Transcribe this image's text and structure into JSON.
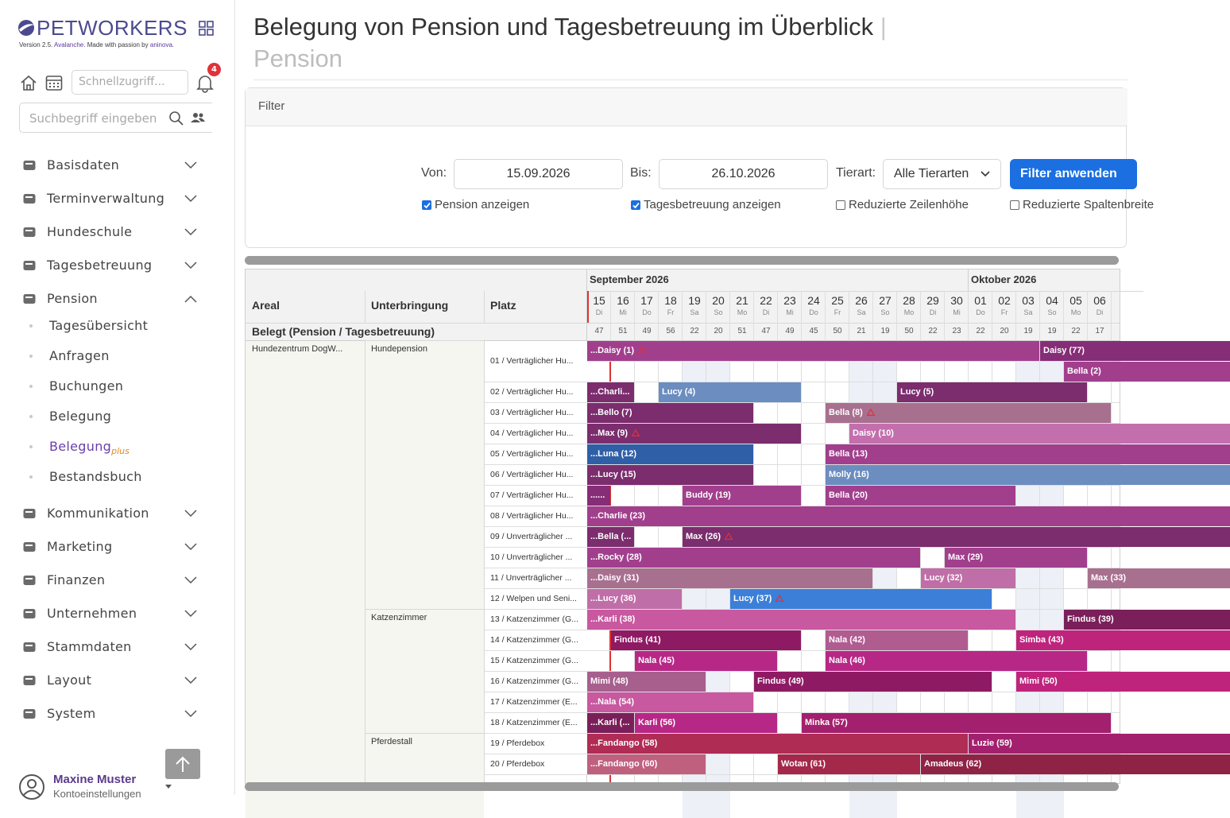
{
  "sidebar": {
    "logo": "PETWORKERS",
    "version": {
      "prefix": "Version 2.5.",
      "release": "Avalanche.",
      "made": "Made with passion by",
      "company": "aninova."
    },
    "quick_access_placeholder": "Schnellzugriff...",
    "notifications": 4,
    "search_placeholder": "Suchbegriff eingeben",
    "menu": [
      {
        "label": "Basisdaten"
      },
      {
        "label": "Terminverwaltung"
      },
      {
        "label": "Hundeschule"
      },
      {
        "label": "Tagesbetreuung"
      },
      {
        "label": "Pension",
        "expanded": true,
        "items": [
          {
            "label": "Tagesübersicht"
          },
          {
            "label": "Anfragen"
          },
          {
            "label": "Buchungen"
          },
          {
            "label": "Belegung"
          },
          {
            "label": "Belegung",
            "suffix": "plus",
            "active": true
          },
          {
            "label": "Bestandsbuch"
          }
        ]
      },
      {
        "label": "Kommunikation"
      },
      {
        "label": "Marketing"
      },
      {
        "label": "Finanzen"
      },
      {
        "label": "Unternehmen"
      },
      {
        "label": "Stammdaten"
      },
      {
        "label": "Layout"
      },
      {
        "label": "System"
      }
    ],
    "user": {
      "name": "Maxine Muster",
      "link": "Kontoeinstellungen"
    }
  },
  "header": {
    "title": "Belegung von Pension und Tagesbetreuung im Überblick",
    "separator": "|",
    "subtitle": "Pension"
  },
  "filter": {
    "title": "Filter",
    "from_label": "Von:",
    "from": "15.09.2026",
    "to_label": "Bis:",
    "to": "26.10.2026",
    "animal_label": "Tierart:",
    "animal": "Alle Tierarten",
    "apply": "Filter anwenden",
    "options": [
      {
        "label": "Pension anzeigen",
        "checked": true
      },
      {
        "label": "Tagesbetreuung anzeigen",
        "checked": true
      },
      {
        "label": "Reduzierte Zeilenhöhe",
        "checked": false
      },
      {
        "label": "Reduzierte Spaltenbreite",
        "checked": false
      }
    ]
  },
  "grid": {
    "columns": [
      "Areal",
      "Unterbringung",
      "Platz"
    ],
    "months": [
      "September 2026",
      "Oktober 2026"
    ],
    "days": [
      {
        "day": "15",
        "weekday": "Di",
        "date": "2026-09-15"
      },
      {
        "day": "16",
        "weekday": "Mi",
        "date": "2026-09-16"
      },
      {
        "day": "17",
        "weekday": "Do",
        "date": "2026-09-17"
      },
      {
        "day": "18",
        "weekday": "Fr",
        "date": "2026-09-18"
      },
      {
        "day": "19",
        "weekday": "Sa",
        "date": "2026-09-19",
        "weekend": true
      },
      {
        "day": "20",
        "weekday": "So",
        "date": "2026-09-20",
        "weekend": true
      },
      {
        "day": "21",
        "weekday": "Mo",
        "date": "2026-09-21"
      },
      {
        "day": "22",
        "weekday": "Di",
        "date": "2026-09-22"
      },
      {
        "day": "23",
        "weekday": "Mi",
        "date": "2026-09-23"
      },
      {
        "day": "24",
        "weekday": "Do",
        "date": "2026-09-24"
      },
      {
        "day": "25",
        "weekday": "Fr",
        "date": "2026-09-25"
      },
      {
        "day": "26",
        "weekday": "Sa",
        "date": "2026-09-26",
        "weekend": true
      },
      {
        "day": "27",
        "weekday": "So",
        "date": "2026-09-27",
        "weekend": true
      },
      {
        "day": "28",
        "weekday": "Mo",
        "date": "2026-09-28"
      },
      {
        "day": "29",
        "weekday": "Di",
        "date": "2026-09-29"
      },
      {
        "day": "30",
        "weekday": "Mi",
        "date": "2026-09-30"
      },
      {
        "day": "01",
        "weekday": "Do",
        "date": "2026-10-01"
      },
      {
        "day": "02",
        "weekday": "Fr",
        "date": "2026-10-02"
      },
      {
        "day": "03",
        "weekday": "Sa",
        "date": "2026-10-03",
        "weekend": true
      },
      {
        "day": "04",
        "weekday": "So",
        "date": "2026-10-04",
        "weekend": true
      },
      {
        "day": "05",
        "weekday": "Mo",
        "date": "2026-10-05"
      },
      {
        "day": "06",
        "weekday": "Di",
        "date": "2026-10-06"
      }
    ],
    "occupied_label": "Belegt (Pension / Tagesbetreuung)",
    "occupied": [
      47,
      51,
      49,
      56,
      22,
      20,
      51,
      47,
      49,
      45,
      50,
      21,
      19,
      50,
      22,
      23,
      22,
      20,
      19,
      19,
      22,
      17
    ],
    "areas": [
      {
        "name": "Hundezentrum DogW...",
        "units": [
          {
            "name": "Hundepension",
            "places": [
              {
                "label": "01 / Verträglicher Hu...",
                "lanes": [
                  [
                    {
                      "label": "...Daisy (1)",
                      "from": "2026-09-15",
                      "to": "2026-10-03",
                      "color": "#a13f8d",
                      "warning": true
                    },
                    {
                      "label": "Daisy (77)",
                      "from": "2026-10-04",
                      "to": null,
                      "color": "#862d77"
                    }
                  ],
                  [
                    {
                      "label": "Bella (2)",
                      "from": "2026-10-05",
                      "to": null,
                      "color": "#a13f8d"
                    }
                  ]
                ]
              },
              {
                "label": "02 / Verträglicher Hu...",
                "lanes": [
                  [
                    {
                      "label": "...Charli...",
                      "from": "2026-09-15",
                      "to": "2026-09-16",
                      "color": "#7b2d6e"
                    },
                    {
                      "label": "Lucy (4)",
                      "from": "2026-09-18",
                      "to": "2026-09-23",
                      "color": "#6b8dbf"
                    },
                    {
                      "label": "Lucy (5)",
                      "from": "2026-09-28",
                      "to": "2026-10-05",
                      "color": "#7b2d6e"
                    }
                  ]
                ]
              },
              {
                "label": "03 / Verträglicher Hu...",
                "lanes": [
                  [
                    {
                      "label": "...Bello (7)",
                      "from": "2026-09-15",
                      "to": "2026-09-21",
                      "color": "#7b2d6e"
                    },
                    {
                      "label": "Bella (8)",
                      "from": "2026-09-25",
                      "to": "2026-10-06",
                      "color": "#a8708f",
                      "warning": true
                    }
                  ]
                ]
              },
              {
                "label": "04 / Verträglicher Hu...",
                "lanes": [
                  [
                    {
                      "label": "...Max (9)",
                      "from": "2026-09-15",
                      "to": "2026-09-23",
                      "color": "#7b2d6e",
                      "warning": true
                    },
                    {
                      "label": "Daisy (10)",
                      "from": "2026-09-26",
                      "to": null,
                      "color": "#c36fad"
                    }
                  ]
                ]
              },
              {
                "label": "05 / Verträglicher Hu...",
                "lanes": [
                  [
                    {
                      "label": "...Luna (12)",
                      "from": "2026-09-15",
                      "to": "2026-09-21",
                      "color": "#2f5fa7"
                    },
                    {
                      "label": "Bella (13)",
                      "from": "2026-09-25",
                      "to": null,
                      "color": "#a13f8d"
                    }
                  ]
                ]
              },
              {
                "label": "06 / Verträglicher Hu...",
                "lanes": [
                  [
                    {
                      "label": "...Lucy (15)",
                      "from": "2026-09-15",
                      "to": "2026-09-21",
                      "color": "#7b2d6e"
                    },
                    {
                      "label": "Molly (16)",
                      "from": "2026-09-25",
                      "to": null,
                      "color": "#6b8dbf"
                    }
                  ]
                ]
              },
              {
                "label": "07 / Verträglicher Hu...",
                "lanes": [
                  [
                    {
                      "label": "......",
                      "from": "2026-09-15",
                      "to": "2026-09-15",
                      "color": "#862d77"
                    },
                    {
                      "label": "Buddy (19)",
                      "from": "2026-09-19",
                      "to": "2026-09-23",
                      "color": "#a13f8d"
                    },
                    {
                      "label": "Bella (20)",
                      "from": "2026-09-25",
                      "to": "2026-10-02",
                      "color": "#a13f8d"
                    }
                  ]
                ]
              },
              {
                "label": "08 / Verträglicher Hu...",
                "lanes": [
                  [
                    {
                      "label": "...Charlie (23)",
                      "from": "2026-09-15",
                      "to": null,
                      "color": "#a13f8d"
                    }
                  ]
                ]
              },
              {
                "label": "09 / Unverträglicher ...",
                "lanes": [
                  [
                    {
                      "label": "...Bella (...",
                      "from": "2026-09-15",
                      "to": "2026-09-16",
                      "color": "#7b2d6e"
                    },
                    {
                      "label": "Max (26)",
                      "from": "2026-09-19",
                      "to": null,
                      "color": "#7b2d6e",
                      "warning": true
                    }
                  ]
                ]
              },
              {
                "label": "10 / Unverträglicher ...",
                "lanes": [
                  [
                    {
                      "label": "...Rocky (28)",
                      "from": "2026-09-15",
                      "to": "2026-09-28",
                      "color": "#a13f8d"
                    },
                    {
                      "label": "Max (29)",
                      "from": "2026-09-30",
                      "to": "2026-10-05",
                      "color": "#a13f8d"
                    }
                  ]
                ]
              },
              {
                "label": "11 / Unverträglicher ...",
                "lanes": [
                  [
                    {
                      "label": "...Daisy (31)",
                      "from": "2026-09-15",
                      "to": "2026-09-26",
                      "color": "#a8708f"
                    },
                    {
                      "label": "Lucy (32)",
                      "from": "2026-09-29",
                      "to": "2026-10-02",
                      "color": "#c06ea7"
                    },
                    {
                      "label": "Max (33)",
                      "from": "2026-10-06",
                      "to": null,
                      "color": "#a8708f"
                    }
                  ]
                ]
              },
              {
                "label": "12 / Welpen und Seni...",
                "lanes": [
                  [
                    {
                      "label": "...Lucy (36)",
                      "from": "2026-09-15",
                      "to": "2026-09-18",
                      "color": "#c06ea7"
                    },
                    {
                      "label": "Lucy (37)",
                      "from": "2026-09-21",
                      "to": "2026-10-01",
                      "color": "#3c7fd8",
                      "warning": true
                    }
                  ]
                ]
              }
            ]
          },
          {
            "name": "Katzenzimmer",
            "places": [
              {
                "label": "13 / Katzenzimmer (G...",
                "lanes": [
                  [
                    {
                      "label": "...Karli (38)",
                      "from": "2026-09-15",
                      "to": "2026-10-02",
                      "color": "#c8589f"
                    },
                    {
                      "label": "Findus (39)",
                      "from": "2026-10-05",
                      "to": null,
                      "color": "#7a1f5a"
                    }
                  ]
                ]
              },
              {
                "label": "14 / Katzenzimmer (G...",
                "lanes": [
                  [
                    {
                      "label": "Findus (41)",
                      "from": "2026-09-16",
                      "to": "2026-09-23",
                      "color": "#8f1a64"
                    },
                    {
                      "label": "Nala (42)",
                      "from": "2026-09-25",
                      "to": "2026-09-30",
                      "color": "#b05c91"
                    },
                    {
                      "label": "Simba (43)",
                      "from": "2026-10-03",
                      "to": null,
                      "color": "#bf247d"
                    }
                  ]
                ]
              },
              {
                "label": "15 / Katzenzimmer (G...",
                "lanes": [
                  [
                    {
                      "label": "Nala (45)",
                      "from": "2026-09-17",
                      "to": "2026-09-22",
                      "color": "#b72886"
                    },
                    {
                      "label": "Nala (46)",
                      "from": "2026-09-25",
                      "to": "2026-10-05",
                      "color": "#b72886"
                    }
                  ]
                ]
              },
              {
                "label": "16 / Katzenzimmer (G...",
                "lanes": [
                  [
                    {
                      "label": "Mimi (48)",
                      "from": "2026-09-15",
                      "to": "2026-09-19",
                      "color": "#a75f8e"
                    },
                    {
                      "label": "Findus (49)",
                      "from": "2026-09-22",
                      "to": "2026-10-01",
                      "color": "#8f1a64"
                    },
                    {
                      "label": "Mimi (50)",
                      "from": "2026-10-03",
                      "to": null,
                      "color": "#bf247d"
                    }
                  ]
                ]
              },
              {
                "label": "17 / Katzenzimmer (E...",
                "lanes": [
                  [
                    {
                      "label": "...Nala (54)",
                      "from": "2026-09-15",
                      "to": "2026-09-21",
                      "color": "#c8589f"
                    }
                  ]
                ]
              },
              {
                "label": "18 / Katzenzimmer (E...",
                "lanes": [
                  [
                    {
                      "label": "...Karli (...",
                      "from": "2026-09-15",
                      "to": "2026-09-16",
                      "color": "#7a1f5a"
                    },
                    {
                      "label": "Karli (56)",
                      "from": "2026-09-17",
                      "to": "2026-09-22",
                      "color": "#b72886"
                    },
                    {
                      "label": "Minka (57)",
                      "from": "2026-09-24",
                      "to": "2026-10-06",
                      "color": "#a3206e"
                    }
                  ]
                ]
              }
            ]
          },
          {
            "name": "Pferdestall",
            "places": [
              {
                "label": "19 / Pferdebox",
                "lanes": [
                  [
                    {
                      "label": "...Fandango (58)",
                      "from": "2026-09-15",
                      "to": "2026-09-30",
                      "color": "#af2c55"
                    },
                    {
                      "label": "Luzie (59)",
                      "from": "2026-10-01",
                      "to": null,
                      "color": "#a3206e"
                    }
                  ]
                ]
              },
              {
                "label": "20 / Pferdebox",
                "lanes": [
                  [
                    {
                      "label": "...Fandango (60)",
                      "from": "2026-09-15",
                      "to": "2026-09-19",
                      "color": "#c0607f"
                    },
                    {
                      "label": "Wotan (61)",
                      "from": "2026-09-23",
                      "to": "2026-09-28",
                      "color": "#a3284a"
                    },
                    {
                      "label": "Amadeus (62)",
                      "from": "2026-09-29",
                      "to": null,
                      "color": "#8e2346"
                    }
                  ]
                ]
              }
            ]
          }
        ]
      }
    ]
  }
}
